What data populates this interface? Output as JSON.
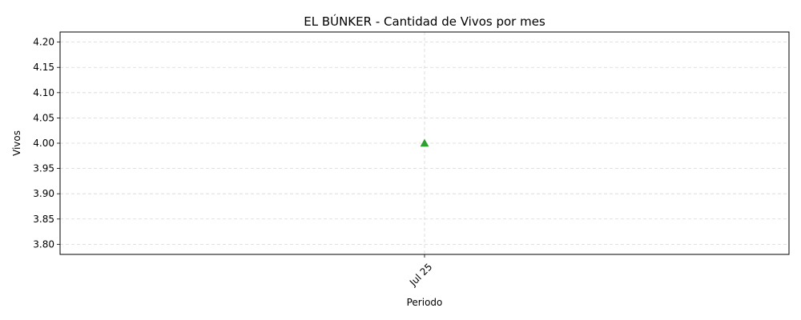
{
  "chart_data": {
    "type": "scatter",
    "title": "EL BÚNKER - Cantidad de Vivos por mes",
    "xlabel": "Periodo",
    "ylabel": "Vivos",
    "categories": [
      "Jul 25"
    ],
    "series": [
      {
        "values": [
          4.0
        ],
        "color": "#2ca02c",
        "marker": "triangle-up"
      }
    ],
    "ylim": [
      3.78,
      4.22
    ],
    "yticks": [
      3.8,
      3.85,
      3.9,
      3.95,
      4.0,
      4.05,
      4.1,
      4.15,
      4.2
    ],
    "ytick_labels": [
      "3.80",
      "3.85",
      "3.90",
      "3.95",
      "4.00",
      "4.05",
      "4.10",
      "4.15",
      "4.20"
    ],
    "xtick_rotation": 45,
    "grid": true,
    "grid_style": "dashed"
  }
}
